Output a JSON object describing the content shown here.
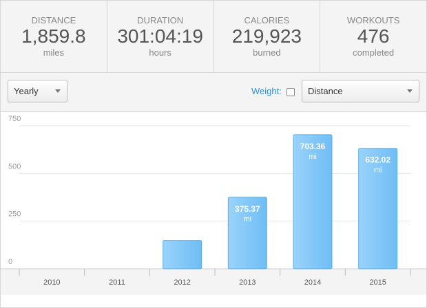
{
  "stats": [
    {
      "label": "DISTANCE",
      "value": "1,859.8",
      "unit": "miles"
    },
    {
      "label": "DURATION",
      "value": "301:04:19",
      "unit": "hours"
    },
    {
      "label": "CALORIES",
      "value": "219,923",
      "unit": "burned"
    },
    {
      "label": "WORKOUTS",
      "value": "476",
      "unit": "completed"
    }
  ],
  "controls": {
    "period": "Yearly",
    "weight_label": "Weight:",
    "metric": "Distance"
  },
  "chart_data": {
    "type": "bar",
    "categories": [
      "2010",
      "2011",
      "2012",
      "2013",
      "2014",
      "2015"
    ],
    "values": [
      0,
      0,
      149.05,
      375.37,
      703.36,
      632.02
    ],
    "value_labels": [
      null,
      null,
      null,
      "375.37",
      "703.36",
      "632.02"
    ],
    "unit": "mi",
    "color": "#80c6f8",
    "ylim": [
      0,
      750
    ],
    "yticks": [
      0,
      250,
      500,
      750
    ],
    "grid": true
  }
}
